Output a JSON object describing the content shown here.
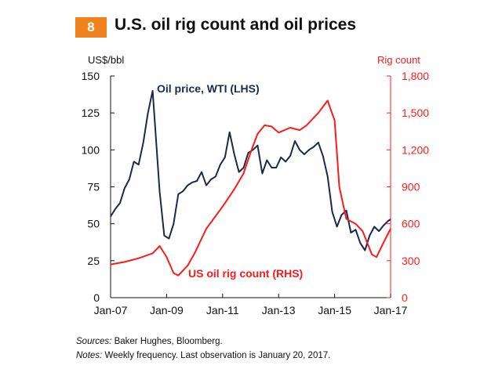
{
  "header": {
    "badge": "8",
    "title": "U.S. oil rig count and oil prices"
  },
  "footer": {
    "sources_label": "Sources:",
    "sources_text": " Baker Hughes, Bloomberg.",
    "notes_label": "Notes:",
    "notes_text": " Weekly frequency. Last observation is January 20, 2017."
  },
  "colors": {
    "oil": "#1b2a4a",
    "rig": "#ff1a1a",
    "badge": "#f0821e",
    "axis": "#111111"
  },
  "chart_data": {
    "type": "line",
    "x_tick_labels": [
      "Jan-07",
      "Jan-09",
      "Jan-11",
      "Jan-13",
      "Jan-15",
      "Jan-17"
    ],
    "xlim": [
      "2007-01",
      "2017-01"
    ],
    "y_left": {
      "unit_label": "US$/bbl",
      "ticks": [
        "0",
        "25",
        "50",
        "75",
        "100",
        "125",
        "150"
      ],
      "ylim": [
        0,
        150
      ]
    },
    "y_right": {
      "unit_label": "Rig count",
      "ticks": [
        "0",
        "300",
        "600",
        "900",
        "1,200",
        "1,500",
        "1,800"
      ],
      "ylim": [
        0,
        1800
      ]
    },
    "series": [
      {
        "name": "Oil price, WTI (LHS)",
        "axis": "left",
        "color": "#1b2a4a",
        "x": [
          "2007-01",
          "2007-03",
          "2007-05",
          "2007-07",
          "2007-09",
          "2007-11",
          "2008-01",
          "2008-03",
          "2008-05",
          "2008-07",
          "2008-08",
          "2008-10",
          "2008-12",
          "2009-02",
          "2009-04",
          "2009-06",
          "2009-08",
          "2009-10",
          "2009-12",
          "2010-02",
          "2010-04",
          "2010-06",
          "2010-08",
          "2010-10",
          "2010-12",
          "2011-02",
          "2011-04",
          "2011-06",
          "2011-08",
          "2011-10",
          "2011-12",
          "2012-02",
          "2012-04",
          "2012-06",
          "2012-08",
          "2012-10",
          "2012-12",
          "2013-02",
          "2013-04",
          "2013-06",
          "2013-08",
          "2013-10",
          "2013-12",
          "2014-02",
          "2014-04",
          "2014-06",
          "2014-08",
          "2014-10",
          "2014-12",
          "2015-02",
          "2015-04",
          "2015-06",
          "2015-08",
          "2015-10",
          "2015-12",
          "2016-02",
          "2016-04",
          "2016-06",
          "2016-08",
          "2016-10",
          "2016-12",
          "2017-01"
        ],
        "y": [
          55,
          60,
          64,
          74,
          80,
          92,
          90,
          105,
          125,
          140,
          118,
          72,
          42,
          40,
          50,
          70,
          72,
          76,
          78,
          79,
          85,
          76,
          80,
          82,
          90,
          95,
          112,
          97,
          85,
          88,
          98,
          100,
          103,
          84,
          93,
          88,
          88,
          95,
          92,
          96,
          106,
          100,
          97,
          100,
          102,
          105,
          96,
          82,
          58,
          48,
          56,
          59,
          44,
          46,
          37,
          32,
          42,
          48,
          45,
          49,
          52,
          53
        ]
      },
      {
        "name": "US oil rig count (RHS)",
        "axis": "right",
        "color": "#ff1a1a",
        "x": [
          "2007-01",
          "2007-07",
          "2008-01",
          "2008-07",
          "2008-10",
          "2009-01",
          "2009-04",
          "2009-06",
          "2009-10",
          "2010-01",
          "2010-06",
          "2011-01",
          "2011-06",
          "2011-10",
          "2012-01",
          "2012-04",
          "2012-07",
          "2012-10",
          "2013-01",
          "2013-06",
          "2013-10",
          "2014-01",
          "2014-06",
          "2014-10",
          "2015-01",
          "2015-03",
          "2015-06",
          "2015-10",
          "2016-01",
          "2016-05",
          "2016-07",
          "2016-10",
          "2017-01"
        ],
        "y": [
          270,
          290,
          320,
          360,
          420,
          330,
          200,
          180,
          260,
          360,
          560,
          740,
          880,
          1010,
          1180,
          1330,
          1400,
          1390,
          1340,
          1380,
          1360,
          1400,
          1500,
          1600,
          1440,
          900,
          640,
          600,
          540,
          350,
          330,
          450,
          560
        ]
      }
    ],
    "annotations": [
      "Oil price, WTI (LHS)",
      "US oil rig count (RHS)"
    ]
  }
}
